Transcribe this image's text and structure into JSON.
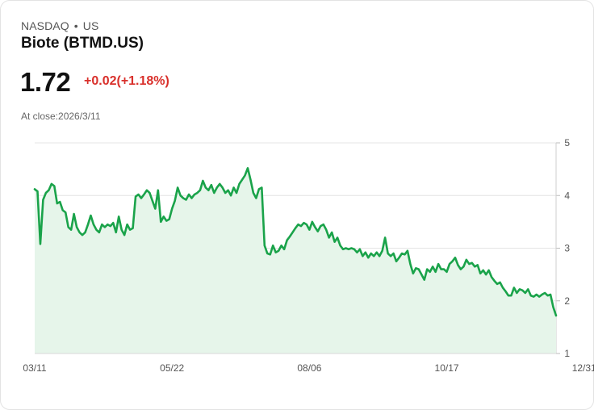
{
  "header": {
    "exchange": "NASDAQ",
    "separator": "•",
    "region": "US",
    "title": "Biote (BTMD.US)",
    "price": "1.72",
    "change": "+0.02(+1.18%)",
    "close_label": "At close:2026/3/11"
  },
  "colors": {
    "line": "#1aa34a",
    "fill": "#e6f5ea",
    "change_negative_or_up": "#d9302b",
    "grid": "#e4e4e4"
  },
  "chart_data": {
    "type": "area",
    "title": "Biote (BTMD.US)",
    "xlabel": "",
    "ylabel": "",
    "ylim": [
      1,
      5
    ],
    "yticks": [
      1,
      2,
      3,
      4,
      5
    ],
    "xtick_labels": [
      "03/11",
      "05/22",
      "08/06",
      "10/17",
      "12/31"
    ],
    "xtick_index": [
      0,
      49,
      98,
      147,
      196
    ],
    "y_axis_side": "right",
    "grid": true,
    "values": [
      4.12,
      4.08,
      3.08,
      3.92,
      4.05,
      4.1,
      4.22,
      4.18,
      3.85,
      3.88,
      3.72,
      3.68,
      3.4,
      3.35,
      3.65,
      3.4,
      3.3,
      3.25,
      3.3,
      3.45,
      3.62,
      3.45,
      3.35,
      3.3,
      3.45,
      3.4,
      3.45,
      3.42,
      3.48,
      3.3,
      3.6,
      3.35,
      3.25,
      3.45,
      3.35,
      3.38,
      3.98,
      4.02,
      3.95,
      4.02,
      4.1,
      4.05,
      3.9,
      3.75,
      4.1,
      3.5,
      3.6,
      3.52,
      3.55,
      3.75,
      3.9,
      4.15,
      4.0,
      3.95,
      3.92,
      4.02,
      3.95,
      4.02,
      4.05,
      4.1,
      4.28,
      4.15,
      4.1,
      4.2,
      4.05,
      4.15,
      4.22,
      4.15,
      4.05,
      4.1,
      4.0,
      4.15,
      4.05,
      4.22,
      4.3,
      4.38,
      4.52,
      4.3,
      4.05,
      3.95,
      4.12,
      4.15,
      3.05,
      2.9,
      2.88,
      3.05,
      2.92,
      2.95,
      3.05,
      2.98,
      3.15,
      3.22,
      3.3,
      3.38,
      3.45,
      3.42,
      3.48,
      3.45,
      3.35,
      3.5,
      3.4,
      3.32,
      3.42,
      3.45,
      3.35,
      3.2,
      3.3,
      3.12,
      3.2,
      3.05,
      2.98,
      3.0,
      2.98,
      3.0,
      2.98,
      2.92,
      2.98,
      2.85,
      2.92,
      2.82,
      2.9,
      2.85,
      2.92,
      2.85,
      2.95,
      3.2,
      2.9,
      2.85,
      2.9,
      2.75,
      2.82,
      2.9,
      2.88,
      2.95,
      2.7,
      2.52,
      2.62,
      2.6,
      2.5,
      2.4,
      2.6,
      2.55,
      2.65,
      2.55,
      2.7,
      2.6,
      2.6,
      2.55,
      2.7,
      2.75,
      2.82,
      2.68,
      2.6,
      2.65,
      2.78,
      2.7,
      2.72,
      2.65,
      2.68,
      2.52,
      2.58,
      2.5,
      2.58,
      2.45,
      2.38,
      2.32,
      2.35,
      2.25,
      2.18,
      2.1,
      2.1,
      2.25,
      2.15,
      2.22,
      2.2,
      2.15,
      2.22,
      2.1,
      2.08,
      2.12,
      2.08,
      2.12,
      2.15,
      2.1,
      2.12,
      1.88,
      1.72
    ]
  }
}
